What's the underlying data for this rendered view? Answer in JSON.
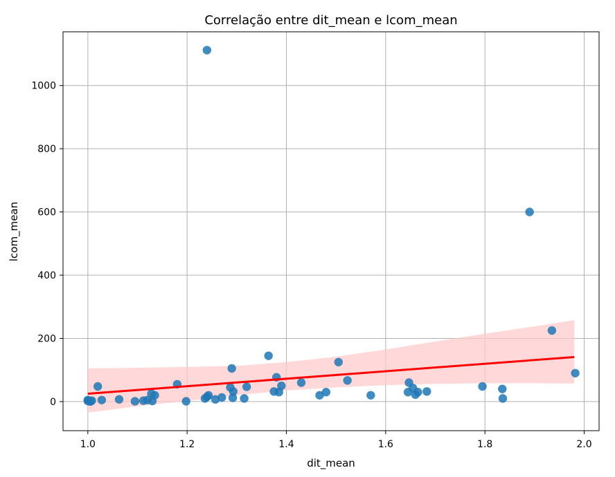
{
  "chart_data": {
    "type": "scatter",
    "title": "Correlação entre dit_mean e lcom_mean",
    "xlabel": "dit_mean",
    "ylabel": "lcom_mean",
    "xlim": [
      0.95,
      2.03
    ],
    "ylim": [
      -92,
      1170
    ],
    "x_ticks": [
      1.0,
      1.2,
      1.4,
      1.6,
      1.8,
      2.0
    ],
    "x_tick_labels": [
      "1.0",
      "1.2",
      "1.4",
      "1.6",
      "1.8",
      "2.0"
    ],
    "y_ticks": [
      0,
      200,
      400,
      600,
      800,
      1000
    ],
    "y_tick_labels": [
      "0",
      "200",
      "400",
      "600",
      "800",
      "1000"
    ],
    "grid": true,
    "colors": {
      "points": "#1f77b4",
      "regression_line": "#ff0000",
      "confidence_band": "#ffcccc",
      "grid": "#b0b0b0"
    },
    "points": [
      {
        "x": 1.0,
        "y": 5
      },
      {
        "x": 1.0,
        "y": 2
      },
      {
        "x": 1.005,
        "y": 0
      },
      {
        "x": 1.008,
        "y": 3
      },
      {
        "x": 1.02,
        "y": 48
      },
      {
        "x": 1.028,
        "y": 5
      },
      {
        "x": 1.063,
        "y": 7
      },
      {
        "x": 1.095,
        "y": 1
      },
      {
        "x": 1.112,
        "y": 3
      },
      {
        "x": 1.12,
        "y": 5
      },
      {
        "x": 1.128,
        "y": 25
      },
      {
        "x": 1.13,
        "y": 2
      },
      {
        "x": 1.135,
        "y": 20
      },
      {
        "x": 1.18,
        "y": 55
      },
      {
        "x": 1.198,
        "y": 1
      },
      {
        "x": 1.236,
        "y": 10
      },
      {
        "x": 1.24,
        "y": 15
      },
      {
        "x": 1.243,
        "y": 20
      },
      {
        "x": 1.24,
        "y": 1112
      },
      {
        "x": 1.257,
        "y": 7
      },
      {
        "x": 1.27,
        "y": 13
      },
      {
        "x": 1.287,
        "y": 45
      },
      {
        "x": 1.29,
        "y": 105
      },
      {
        "x": 1.292,
        "y": 12
      },
      {
        "x": 1.293,
        "y": 32
      },
      {
        "x": 1.315,
        "y": 10
      },
      {
        "x": 1.32,
        "y": 47
      },
      {
        "x": 1.364,
        "y": 145
      },
      {
        "x": 1.375,
        "y": 32
      },
      {
        "x": 1.38,
        "y": 77
      },
      {
        "x": 1.385,
        "y": 30
      },
      {
        "x": 1.39,
        "y": 50
      },
      {
        "x": 1.43,
        "y": 60
      },
      {
        "x": 1.467,
        "y": 20
      },
      {
        "x": 1.48,
        "y": 30
      },
      {
        "x": 1.505,
        "y": 125
      },
      {
        "x": 1.523,
        "y": 67
      },
      {
        "x": 1.57,
        "y": 20
      },
      {
        "x": 1.645,
        "y": 30
      },
      {
        "x": 1.647,
        "y": 60
      },
      {
        "x": 1.655,
        "y": 43
      },
      {
        "x": 1.66,
        "y": 22
      },
      {
        "x": 1.665,
        "y": 30
      },
      {
        "x": 1.683,
        "y": 32
      },
      {
        "x": 1.795,
        "y": 48
      },
      {
        "x": 1.835,
        "y": 40
      },
      {
        "x": 1.836,
        "y": 10
      },
      {
        "x": 1.89,
        "y": 600
      },
      {
        "x": 1.935,
        "y": 225
      },
      {
        "x": 1.982,
        "y": 90
      }
    ],
    "regression": {
      "x": [
        1.0,
        1.98
      ],
      "y": [
        25,
        141
      ]
    },
    "confidence_band": {
      "x": [
        1.0,
        1.1,
        1.2,
        1.3,
        1.4,
        1.5,
        1.6,
        1.7,
        1.8,
        1.9,
        1.98
      ],
      "upper": [
        105,
        107,
        110,
        113,
        125,
        142,
        165,
        190,
        215,
        238,
        258
      ],
      "lower": [
        -35,
        -15,
        2,
        20,
        35,
        45,
        52,
        56,
        58,
        58,
        57
      ]
    }
  }
}
